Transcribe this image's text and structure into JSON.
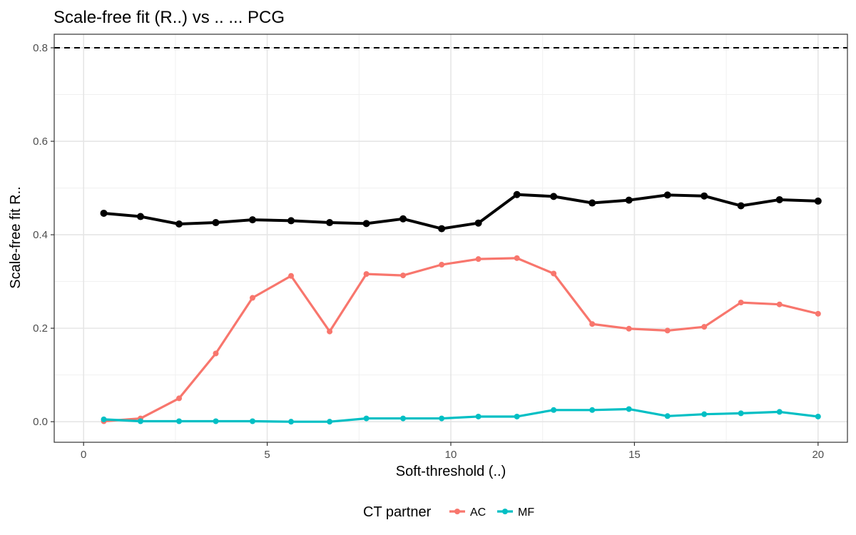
{
  "chart_data": {
    "type": "line",
    "title": "Scale-free fit (R..) vs .. ... PCG",
    "xlabel": "Soft-threshold (..)",
    "ylabel": "Scale-free fit R..",
    "xlim": [
      -0.8,
      20.8
    ],
    "ylim": [
      -0.044,
      0.829
    ],
    "x_ticks": [
      0,
      5,
      10,
      15,
      20
    ],
    "x_tick_labels": [
      "0",
      "5",
      "10",
      "15",
      "20"
    ],
    "y_ticks": [
      0.0,
      0.2,
      0.4,
      0.6,
      0.8
    ],
    "y_tick_labels": [
      "0.0",
      "0.2",
      "0.4",
      "0.6",
      "0.8"
    ],
    "grid": true,
    "reference_line": {
      "y": 0.8,
      "style": "dashed",
      "color": "#000000"
    },
    "legend": {
      "title": "CT partner",
      "position": "bottom"
    },
    "series": [
      {
        "color": "#000000",
        "show_in_legend": false,
        "x": [
          0.55,
          1.55,
          2.6,
          3.6,
          4.6,
          5.65,
          6.7,
          7.7,
          8.7,
          9.75,
          10.75,
          11.8,
          12.8,
          13.85,
          14.85,
          15.9,
          16.9,
          17.9,
          18.95,
          20.0
        ],
        "y": [
          0.446,
          0.439,
          0.423,
          0.426,
          0.432,
          0.43,
          0.426,
          0.424,
          0.434,
          0.413,
          0.425,
          0.486,
          0.482,
          0.468,
          0.474,
          0.485,
          0.483,
          0.462,
          0.475,
          0.472
        ]
      },
      {
        "name": "AC",
        "color": "#F8766D",
        "show_in_legend": true,
        "x": [
          0.55,
          1.55,
          2.6,
          3.6,
          4.6,
          5.65,
          6.7,
          7.7,
          8.7,
          9.75,
          10.75,
          11.8,
          12.8,
          13.85,
          14.85,
          15.9,
          16.9,
          17.9,
          18.95,
          20.0
        ],
        "y": [
          0.001,
          0.007,
          0.05,
          0.146,
          0.265,
          0.312,
          0.193,
          0.316,
          0.313,
          0.336,
          0.348,
          0.35,
          0.317,
          0.209,
          0.199,
          0.195,
          0.203,
          0.255,
          0.251,
          0.231
        ]
      },
      {
        "name": "MF",
        "color": "#00BFC4",
        "show_in_legend": true,
        "x": [
          0.55,
          1.55,
          2.6,
          3.6,
          4.6,
          5.65,
          6.7,
          7.7,
          8.7,
          9.75,
          10.75,
          11.8,
          12.8,
          13.85,
          14.85,
          15.9,
          16.9,
          17.9,
          18.95,
          20.0
        ],
        "y": [
          0.005,
          0.001,
          0.001,
          0.001,
          0.001,
          0.0,
          0.0,
          0.007,
          0.007,
          0.007,
          0.011,
          0.011,
          0.025,
          0.025,
          0.027,
          0.012,
          0.016,
          0.018,
          0.021,
          0.011
        ]
      }
    ]
  }
}
